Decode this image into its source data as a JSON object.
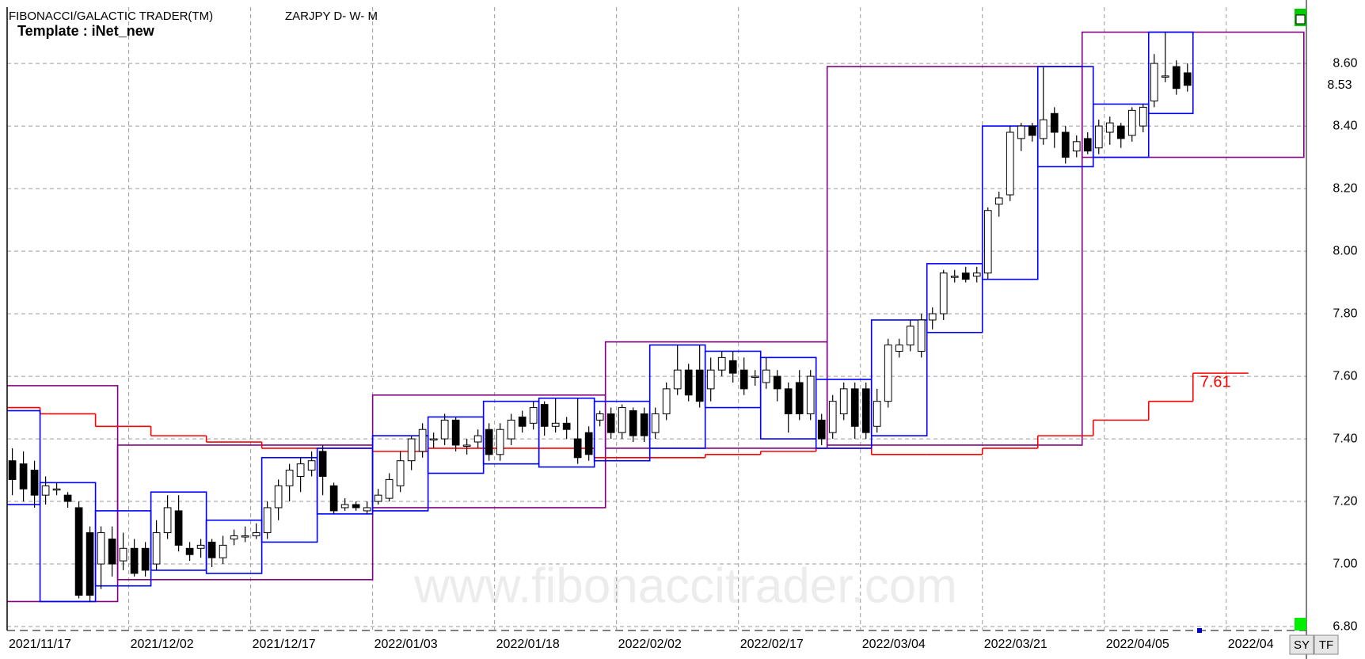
{
  "chart_data": {
    "type": "candlestick",
    "title": "FIBONACCI/GALACTIC TRADER(TM)",
    "subtitle": "ZARJPY D- W- M",
    "template": "Template : iNet_new",
    "watermark": "www.fibonaccitrader.com",
    "buttons": [
      "SY",
      "TF"
    ],
    "color_up": "#ffffff",
    "color_down": "#000000",
    "grid": true,
    "xlim": [
      -0.47,
      116.73
    ],
    "xticks": [
      {
        "value": -0.5,
        "label": "2021/11/17"
      },
      {
        "value": 10.5,
        "label": "2021/12/02"
      },
      {
        "value": 21.5,
        "label": "2021/12/17"
      },
      {
        "value": 32.5,
        "label": "2022/01/03"
      },
      {
        "value": 43.5,
        "label": "2022/01/18"
      },
      {
        "value": 54.5,
        "label": "2022/02/02"
      },
      {
        "value": 65.5,
        "label": "2022/02/17"
      },
      {
        "value": 76.5,
        "label": "2022/03/04"
      },
      {
        "value": 87.5,
        "label": "2022/03/21"
      },
      {
        "value": 98.5,
        "label": "2022/04/05"
      },
      {
        "value": 109.5,
        "label": "2022/04"
      }
    ],
    "ylim": [
      6.79,
      8.78
    ],
    "yticks": [
      {
        "value": 6.8,
        "label": "6.80"
      },
      {
        "value": 7.0,
        "label": "7.00"
      },
      {
        "value": 7.2,
        "label": "7.20"
      },
      {
        "value": 7.4,
        "label": "7.40"
      },
      {
        "value": 7.6,
        "label": "7.60"
      },
      {
        "value": 7.8,
        "label": "7.80"
      },
      {
        "value": 8.0,
        "label": "8.00"
      },
      {
        "value": 8.2,
        "label": "8.20"
      },
      {
        "value": 8.4,
        "label": "8.40"
      },
      {
        "value": 8.6,
        "label": "8.60"
      }
    ],
    "last_price": 8.53,
    "open": [
      7.33,
      7.32,
      7.3,
      7.22,
      7.24,
      7.22,
      7.18,
      7.1,
      7.0,
      7.08,
      7.01,
      7.05,
      7.05,
      7.0,
      7.1,
      7.17,
      7.05,
      7.05,
      7.07,
      7.02,
      7.08,
      7.09,
      7.09,
      7.1,
      7.18,
      7.25,
      7.28,
      7.3,
      7.36,
      7.25,
      7.18,
      7.19,
      7.17,
      7.2,
      7.21,
      7.25,
      7.33,
      7.36,
      7.4,
      7.4,
      7.46,
      7.38,
      7.39,
      7.43,
      7.35,
      7.4,
      7.47,
      7.45,
      7.51,
      7.44,
      7.45,
      7.4,
      7.42,
      7.46,
      7.48,
      7.42,
      7.49,
      7.48,
      7.42,
      7.48,
      7.56,
      7.62,
      7.62,
      7.56,
      7.62,
      7.65,
      7.62,
      7.6,
      7.58,
      7.6,
      7.56,
      7.58,
      7.48,
      7.46,
      7.42,
      7.48,
      7.56,
      7.56,
      7.44,
      7.52,
      7.68,
      7.7,
      7.68,
      7.78,
      7.8,
      7.92,
      7.93,
      7.92,
      7.93,
      8.15,
      8.18,
      8.36,
      8.4,
      8.36,
      8.44,
      8.38,
      8.32,
      8.36,
      8.33,
      8.38,
      8.4,
      8.37,
      8.4,
      8.48,
      8.56,
      8.59,
      8.57
    ],
    "high": [
      7.37,
      7.36,
      7.33,
      7.28,
      7.26,
      7.23,
      7.2,
      7.12,
      7.12,
      7.12,
      7.1,
      7.08,
      7.07,
      7.14,
      7.22,
      7.22,
      7.07,
      7.08,
      7.08,
      7.09,
      7.11,
      7.12,
      7.13,
      7.2,
      7.27,
      7.32,
      7.34,
      7.36,
      7.38,
      7.26,
      7.21,
      7.2,
      7.2,
      7.24,
      7.29,
      7.36,
      7.41,
      7.45,
      7.42,
      7.48,
      7.47,
      7.4,
      7.43,
      7.45,
      7.45,
      7.48,
      7.49,
      7.52,
      7.52,
      7.53,
      7.47,
      7.53,
      7.44,
      7.49,
      7.5,
      7.51,
      7.5,
      7.5,
      7.5,
      7.58,
      7.7,
      7.64,
      7.7,
      7.66,
      7.68,
      7.68,
      7.66,
      7.62,
      7.66,
      7.62,
      7.58,
      7.62,
      7.62,
      7.48,
      7.54,
      7.58,
      7.58,
      7.58,
      7.56,
      7.72,
      7.72,
      7.78,
      7.8,
      7.82,
      7.94,
      7.94,
      7.95,
      7.95,
      8.14,
      8.19,
      8.4,
      8.41,
      8.41,
      8.59,
      8.46,
      8.4,
      8.37,
      8.38,
      8.42,
      8.43,
      8.41,
      8.46,
      8.47,
      8.63,
      8.7,
      8.61,
      8.6
    ],
    "low": [
      7.22,
      7.2,
      7.18,
      7.19,
      7.22,
      7.18,
      6.89,
      6.88,
      6.92,
      6.96,
      6.98,
      6.96,
      6.96,
      6.98,
      7.08,
      7.04,
      7.01,
      7.02,
      6.99,
      7.0,
      7.06,
      7.07,
      7.08,
      7.08,
      7.14,
      7.2,
      7.23,
      7.28,
      7.22,
      7.16,
      7.17,
      7.17,
      7.16,
      7.19,
      7.2,
      7.23,
      7.3,
      7.34,
      7.37,
      7.38,
      7.36,
      7.35,
      7.37,
      7.33,
      7.33,
      7.38,
      7.42,
      7.43,
      7.41,
      7.42,
      7.4,
      7.32,
      7.33,
      7.44,
      7.4,
      7.4,
      7.39,
      7.39,
      7.4,
      7.46,
      7.54,
      7.52,
      7.5,
      7.52,
      7.6,
      7.58,
      7.54,
      7.57,
      7.56,
      7.52,
      7.42,
      7.46,
      7.46,
      7.38,
      7.4,
      7.46,
      7.4,
      7.4,
      7.42,
      7.5,
      7.66,
      7.68,
      7.66,
      7.75,
      7.78,
      7.9,
      7.9,
      7.9,
      7.91,
      8.11,
      8.16,
      8.32,
      8.35,
      8.34,
      8.33,
      8.28,
      8.3,
      8.31,
      8.31,
      8.34,
      8.33,
      8.35,
      8.38,
      8.46,
      8.54,
      8.5,
      8.51
    ],
    "close": [
      7.27,
      7.24,
      7.22,
      7.25,
      7.24,
      7.2,
      6.9,
      6.9,
      7.1,
      7.0,
      7.05,
      6.97,
      6.98,
      7.1,
      7.18,
      7.06,
      7.03,
      7.06,
      7.02,
      7.06,
      7.09,
      7.09,
      7.1,
      7.18,
      7.25,
      7.3,
      7.32,
      7.33,
      7.28,
      7.17,
      7.19,
      7.18,
      7.18,
      7.22,
      7.27,
      7.33,
      7.4,
      7.43,
      7.4,
      7.46,
      7.38,
      7.38,
      7.41,
      7.35,
      7.43,
      7.46,
      7.44,
      7.5,
      7.44,
      7.45,
      7.43,
      7.34,
      7.35,
      7.48,
      7.42,
      7.5,
      7.41,
      7.41,
      7.48,
      7.56,
      7.62,
      7.54,
      7.52,
      7.62,
      7.66,
      7.61,
      7.56,
      7.6,
      7.62,
      7.56,
      7.48,
      7.48,
      7.6,
      7.4,
      7.52,
      7.56,
      7.44,
      7.42,
      7.52,
      7.7,
      7.7,
      7.76,
      7.78,
      7.8,
      7.93,
      7.92,
      7.91,
      7.93,
      8.13,
      8.17,
      8.38,
      8.4,
      8.37,
      8.42,
      8.38,
      8.3,
      8.35,
      8.32,
      8.4,
      8.41,
      8.36,
      8.45,
      8.46,
      8.6,
      8.56,
      8.52,
      8.53
    ],
    "weekly_boxes": {
      "color": "#0000ff",
      "start": [
        0,
        3,
        8,
        13,
        18,
        23,
        28,
        33,
        38,
        43,
        48,
        53,
        58,
        63,
        68,
        73,
        78,
        83,
        88,
        93,
        98,
        103
      ],
      "end": [
        2,
        7,
        12,
        17,
        22,
        27,
        32,
        37,
        42,
        47,
        52,
        57,
        62,
        67,
        72,
        77,
        82,
        87,
        92,
        97,
        102,
        106
      ],
      "high": [
        7.49,
        7.26,
        7.17,
        7.23,
        7.14,
        7.34,
        7.37,
        7.41,
        7.47,
        7.52,
        7.53,
        7.52,
        7.7,
        7.68,
        7.66,
        7.59,
        7.78,
        7.96,
        8.4,
        8.59,
        8.47,
        8.7
      ],
      "low": [
        7.19,
        6.88,
        6.93,
        6.98,
        6.97,
        7.07,
        7.16,
        7.17,
        7.29,
        7.32,
        7.31,
        7.33,
        7.37,
        7.5,
        7.4,
        7.37,
        7.41,
        7.74,
        7.91,
        8.27,
        8.3,
        8.44
      ]
    },
    "monthly_boxes": {
      "color": "#800080",
      "start": [
        0,
        10,
        33,
        54,
        74,
        97
      ],
      "end": [
        9,
        32,
        53,
        73,
        96,
        116
      ],
      "high": [
        7.57,
        7.38,
        7.54,
        7.71,
        8.59,
        8.7
      ],
      "low": [
        6.88,
        6.95,
        7.18,
        7.37,
        7.38,
        8.3
      ]
    },
    "red_line": {
      "color": "#ff0000",
      "start": [
        0,
        3,
        8,
        13,
        18,
        23,
        28,
        33,
        38,
        43,
        48,
        53,
        58,
        63,
        68,
        73,
        78,
        83,
        88,
        93,
        98,
        103,
        107
      ],
      "end": [
        2,
        7,
        12,
        17,
        22,
        27,
        32,
        37,
        42,
        47,
        52,
        57,
        62,
        67,
        72,
        77,
        82,
        87,
        92,
        97,
        102,
        106,
        111
      ],
      "values": [
        7.5,
        7.48,
        7.44,
        7.41,
        7.39,
        7.37,
        7.37,
        7.36,
        7.37,
        7.37,
        7.37,
        7.34,
        7.34,
        7.35,
        7.36,
        7.37,
        7.35,
        7.35,
        7.37,
        7.41,
        7.46,
        7.52,
        7.61
      ]
    }
  }
}
